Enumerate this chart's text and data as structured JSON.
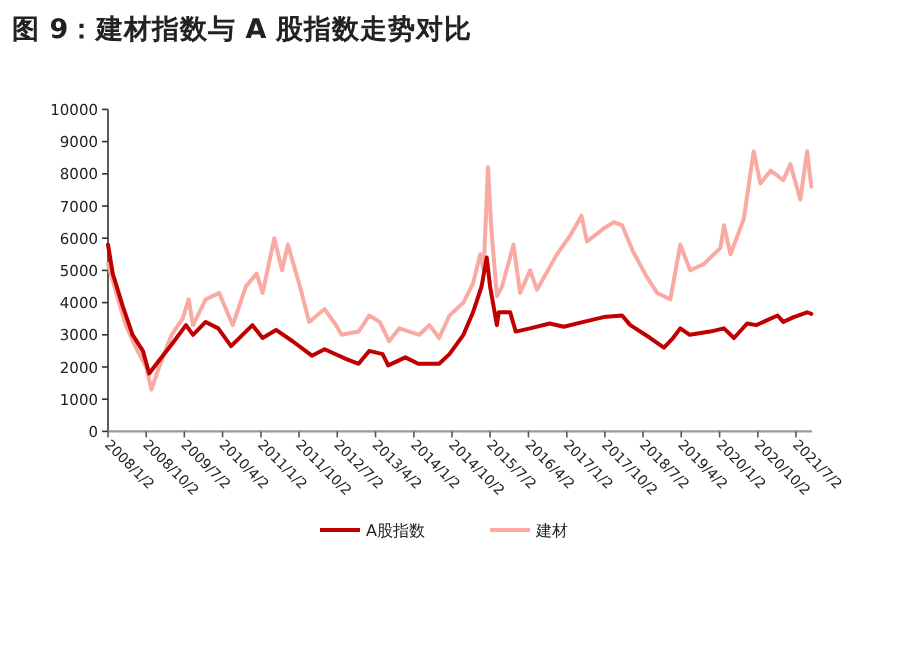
{
  "chart_data": {
    "type": "line",
    "title": "图 9：建材指数与 A 股指数走势对比",
    "xlim": [
      "2008-01-02",
      "2021-10-25"
    ],
    "xticks": [
      {
        "value": "2008-01-02",
        "label": "2008/1/2"
      },
      {
        "value": "2008-10-02",
        "label": "2008/10/2"
      },
      {
        "value": "2009-07-02",
        "label": "2009/7/2"
      },
      {
        "value": "2010-04-02",
        "label": "2010/4/2"
      },
      {
        "value": "2011-01-02",
        "label": "2011/1/2"
      },
      {
        "value": "2011-10-02",
        "label": "2011/10/2"
      },
      {
        "value": "2012-07-02",
        "label": "2012/7/2"
      },
      {
        "value": "2013-04-02",
        "label": "2013/4/2"
      },
      {
        "value": "2014-01-02",
        "label": "2014/1/2"
      },
      {
        "value": "2014-10-02",
        "label": "2014/10/2"
      },
      {
        "value": "2015-07-02",
        "label": "2015/7/2"
      },
      {
        "value": "2016-04-02",
        "label": "2016/4/2"
      },
      {
        "value": "2017-01-02",
        "label": "2017/1/2"
      },
      {
        "value": "2017-10-02",
        "label": "2017/10/2"
      },
      {
        "value": "2018-07-02",
        "label": "2018/7/2"
      },
      {
        "value": "2019-04-02",
        "label": "2019/4/2"
      },
      {
        "value": "2020-01-02",
        "label": "2020/1/2"
      },
      {
        "value": "2020-10-02",
        "label": "2020/10/2"
      },
      {
        "value": "2021-07-02",
        "label": "2021/7/2"
      }
    ],
    "ylim": [
      0,
      10000
    ],
    "yticks": [
      0,
      1000,
      2000,
      3000,
      4000,
      5000,
      6000,
      7000,
      8000,
      9000,
      10000
    ],
    "legend": "bottom",
    "grid": false,
    "marker": "none",
    "line_style": "solid",
    "series": [
      {
        "name": "A股指数",
        "color": "#c00000",
        "x": [
          "2008-01-02",
          "2008-02-05",
          "2008-04-16",
          "2008-06-26",
          "2008-09-08",
          "2008-10-23",
          "2009-01-02",
          "2009-04-02",
          "2009-07-14",
          "2009-09-02",
          "2009-12-02",
          "2010-03-02",
          "2010-06-02",
          "2010-11-02",
          "2011-01-14",
          "2011-04-20",
          "2011-08-17",
          "2012-01-02",
          "2012-04-02",
          "2012-09-02",
          "2012-12-02",
          "2013-02-16",
          "2013-05-23",
          "2013-07-02",
          "2013-11-02",
          "2014-02-02",
          "2014-07-02",
          "2014-09-14",
          "2014-12-23",
          "2015-03-02",
          "2015-05-02",
          "2015-06-08",
          "2015-07-02",
          "2015-08-20",
          "2015-09-02",
          "2015-11-23",
          "2016-01-02",
          "2016-04-14",
          "2016-09-02",
          "2016-12-11",
          "2017-05-02",
          "2017-09-23",
          "2018-02-02",
          "2018-04-02",
          "2018-08-23",
          "2018-11-29",
          "2019-02-02",
          "2019-03-26",
          "2019-06-02",
          "2019-10-26",
          "2020-02-02",
          "2020-04-14",
          "2020-07-17",
          "2020-09-20",
          "2021-02-20",
          "2021-04-02",
          "2021-06-16",
          "2021-09-20",
          "2021-10-20"
        ],
        "values": [
          5800,
          4900,
          3900,
          3000,
          2500,
          1800,
          2200,
          2700,
          3300,
          3000,
          3400,
          3200,
          2650,
          3300,
          2900,
          3150,
          2800,
          2350,
          2550,
          2250,
          2100,
          2500,
          2400,
          2050,
          2300,
          2100,
          2100,
          2400,
          3000,
          3700,
          4500,
          5400,
          4500,
          3300,
          3700,
          3700,
          3100,
          3200,
          3350,
          3250,
          3400,
          3550,
          3600,
          3300,
          2900,
          2600,
          2900,
          3200,
          3000,
          3100,
          3200,
          2900,
          3350,
          3300,
          3600,
          3400,
          3550,
          3700,
          3650
        ]
      },
      {
        "name": "建材",
        "color": "#f8aaa3",
        "x": [
          "2008-01-02",
          "2008-03-01",
          "2008-05-08",
          "2008-07-20",
          "2008-10-02",
          "2008-11-08",
          "2009-01-02",
          "2009-04-02",
          "2009-06-20",
          "2009-08-02",
          "2009-09-02",
          "2009-12-02",
          "2010-03-08",
          "2010-06-14",
          "2010-09-16",
          "2010-12-02",
          "2011-01-14",
          "2011-04-08",
          "2011-06-02",
          "2011-07-14",
          "2011-10-02",
          "2011-12-14",
          "2012-04-02",
          "2012-06-23",
          "2012-08-02",
          "2012-12-02",
          "2013-02-16",
          "2013-05-02",
          "2013-07-08",
          "2013-09-20",
          "2014-02-11",
          "2014-04-23",
          "2014-07-02",
          "2014-09-14",
          "2014-12-23",
          "2015-03-02",
          "2015-04-23",
          "2015-05-17",
          "2015-06-17",
          "2015-07-11",
          "2015-08-20",
          "2015-09-26",
          "2015-12-17",
          "2016-02-02",
          "2016-04-14",
          "2016-06-02",
          "2016-10-23",
          "2017-01-29",
          "2017-04-17",
          "2017-05-26",
          "2017-09-23",
          "2017-12-05",
          "2018-02-02",
          "2018-04-20",
          "2018-07-29",
          "2018-10-11",
          "2019-01-14",
          "2019-03-26",
          "2019-06-05",
          "2019-09-11",
          "2020-01-08",
          "2020-02-02",
          "2020-03-20",
          "2020-06-23",
          "2020-09-02",
          "2020-10-20",
          "2021-01-02",
          "2021-04-02",
          "2021-05-23",
          "2021-08-02",
          "2021-09-20",
          "2021-10-20"
        ],
        "values": [
          5200,
          4300,
          3300,
          2600,
          2000,
          1300,
          2000,
          3000,
          3500,
          4100,
          3300,
          4100,
          4300,
          3300,
          4500,
          4900,
          4300,
          6000,
          5000,
          5800,
          4600,
          3400,
          3800,
          3300,
          3000,
          3100,
          3600,
          3400,
          2800,
          3200,
          3000,
          3300,
          2900,
          3600,
          4000,
          4600,
          5500,
          5000,
          8200,
          6300,
          4200,
          4500,
          5800,
          4300,
          5000,
          4400,
          5500,
          6100,
          6700,
          5900,
          6300,
          6500,
          6400,
          5600,
          4800,
          4300,
          4100,
          5800,
          5000,
          5200,
          5700,
          6400,
          5500,
          6600,
          8700,
          7700,
          8100,
          7800,
          8300,
          7200,
          8700,
          7600
        ]
      }
    ]
  }
}
